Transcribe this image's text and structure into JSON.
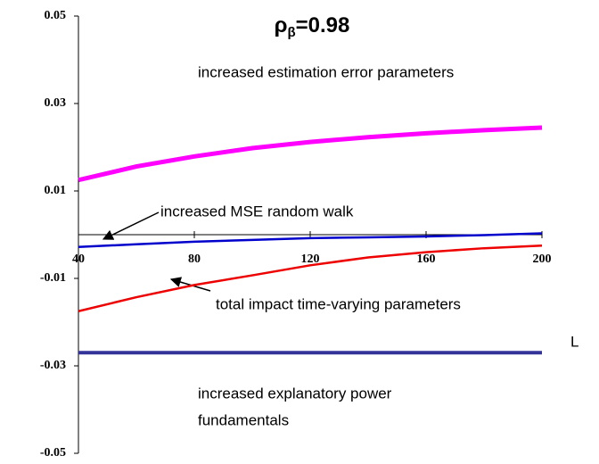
{
  "chart_data": {
    "type": "line",
    "title": "ρβ=0.98",
    "xlabel": "L",
    "x": [
      40,
      60,
      80,
      100,
      120,
      140,
      160,
      180,
      200
    ],
    "series": [
      {
        "color": "#ff00ff",
        "values": [
          0.0125,
          0.0156,
          0.0179,
          0.0198,
          0.0212,
          0.0223,
          0.0232,
          0.0239,
          0.0245
        ]
      },
      {
        "color": "#0000cc",
        "values": [
          -0.0028,
          -0.0022,
          -0.0016,
          -0.0012,
          -0.0008,
          -0.0006,
          -0.0004,
          -0.0001,
          0.0003
        ]
      },
      {
        "color": "#ee0000",
        "values": [
          -0.0175,
          -0.0143,
          -0.0115,
          -0.0093,
          -0.007,
          -0.0052,
          -0.004,
          -0.0031,
          -0.0025
        ]
      },
      {
        "color": "#333399",
        "values": [
          -0.027,
          -0.027,
          -0.027,
          -0.027,
          -0.027,
          -0.027,
          -0.027,
          -0.027,
          -0.027
        ]
      }
    ],
    "annotations": [
      "increased estimation error parameters",
      "increased MSE random walk",
      "total impact time-varying parameters",
      "increased explanatory power",
      "fundamentals"
    ],
    "xlim": [
      40,
      200
    ],
    "xticks": [
      40,
      80,
      120,
      160,
      200
    ],
    "ylim": [
      -0.05,
      0.05
    ],
    "yticks": [
      0.05,
      0.03,
      0.01,
      -0.01,
      -0.03,
      -0.05
    ]
  }
}
